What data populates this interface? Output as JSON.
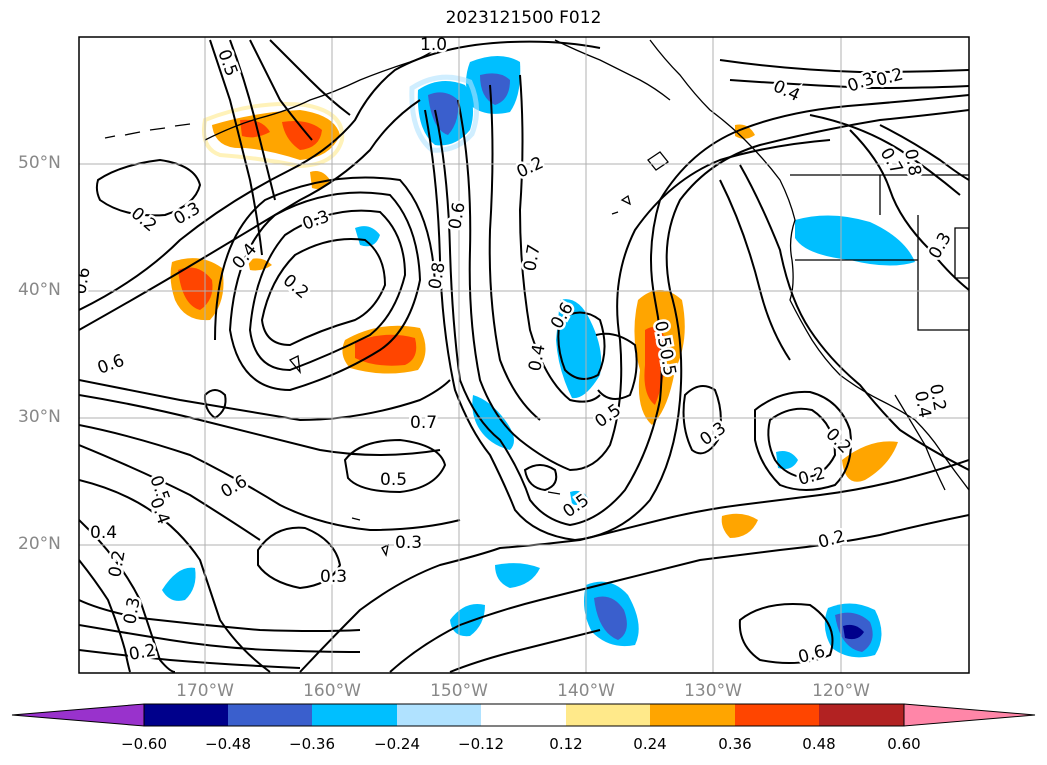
{
  "title": "2023121500 F012",
  "lat_labels": [
    "50°N",
    "40°N",
    "30°N",
    "20°N"
  ],
  "lon_labels": [
    "170°W",
    "160°W",
    "150°W",
    "140°W",
    "130°W",
    "120°W"
  ],
  "colorbar": {
    "ticks": [
      "−0.60",
      "−0.48",
      "−0.36",
      "−0.24",
      "−0.12",
      "0.12",
      "0.24",
      "0.36",
      "0.48",
      "0.60"
    ],
    "colors": [
      "#9932cc",
      "#00008b",
      "#3a5fcd",
      "#00bfff",
      "#b0e2ff",
      "#ffffff",
      "#ffe98a",
      "#ffa500",
      "#ff4500",
      "#b22222",
      "#ff86a8"
    ]
  },
  "contour_labels": [
    "1.0",
    "0.5",
    "0.4",
    "0.3",
    "0.2",
    "0.7",
    "0.8",
    "0.2",
    "0.3",
    "0.3",
    "0.2",
    "0.4",
    "0.2",
    "0.6",
    "0.8",
    "0.7",
    "0.6",
    "0.4",
    "0.5",
    "0.5",
    "0.6",
    "0.5",
    "0.6",
    "0.7",
    "0.5",
    "0.3",
    "0.2",
    "0.2",
    "0.2",
    "0.6",
    "0.5",
    "0.5",
    "0.4",
    "0.4",
    "0.3",
    "0.2",
    "0.3",
    "0.2",
    "0.3",
    "0.3",
    "0.2",
    "0.6",
    "0.4"
  ],
  "map": {
    "extent": "175°W–105°W, 10°N–60°N",
    "grid": true
  }
}
